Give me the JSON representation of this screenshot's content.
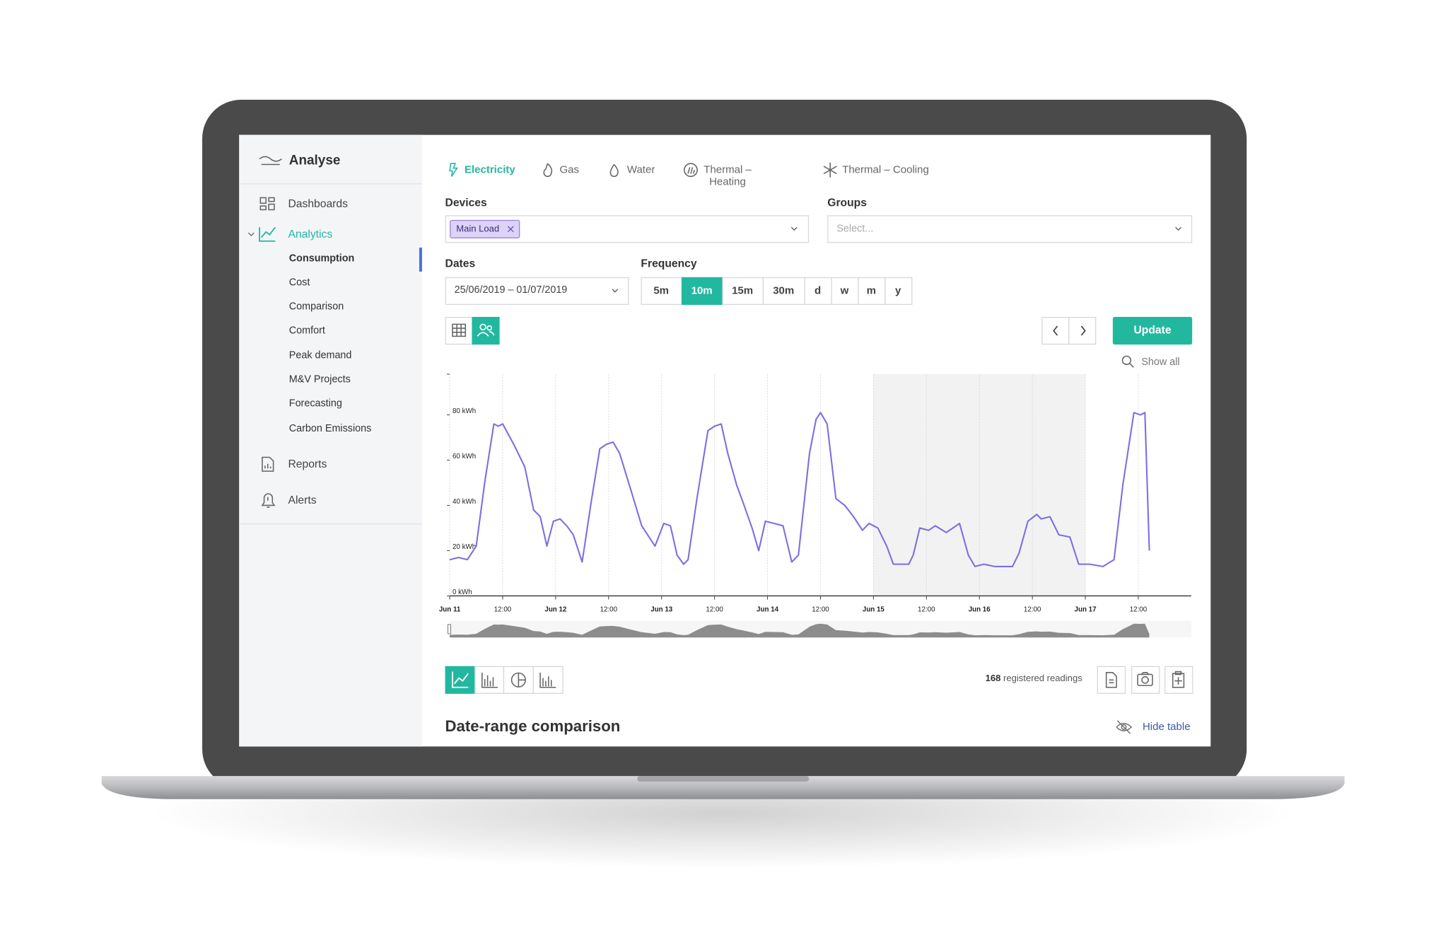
{
  "app": {
    "title": "Analyse"
  },
  "sidebar": {
    "items": [
      "Dashboards",
      "Analytics",
      "Reports",
      "Alerts"
    ],
    "analytics_sub": [
      "Consumption",
      "Cost",
      "Comparison",
      "Comfort",
      "Peak demand",
      "M&V Projects",
      "Forecasting",
      "Carbon Emissions"
    ]
  },
  "tabs": [
    "Electricity",
    "Gas",
    "Water",
    [
      "Thermal –",
      "Heating"
    ],
    "Thermal – Cooling"
  ],
  "filters": {
    "devices_label": "Devices",
    "device_tag": "Main Load",
    "groups_label": "Groups",
    "groups_placeholder": "Select...",
    "dates_label": "Dates",
    "date_range": "25/06/2019 – 01/07/2019",
    "frequency_label": "Frequency",
    "frequency_options": [
      "5m",
      "10m",
      "15m",
      "30m",
      "d",
      "w",
      "m",
      "y"
    ],
    "frequency_selected": "10m"
  },
  "update_button": "Update",
  "show_all": "Show all",
  "readings": {
    "count": 168,
    "text": "registered readings"
  },
  "section_title": "Date-range comparison",
  "hide_table": "Hide table",
  "chart_data": {
    "type": "line",
    "color": "#7b6fe3",
    "x": [
      0,
      2,
      4,
      6,
      8,
      10,
      11,
      12,
      14.5,
      17,
      19,
      20.5,
      22,
      23.5,
      25,
      26.5,
      28,
      30,
      32,
      34,
      35.5,
      37,
      38.5,
      41,
      43.5,
      46.5,
      48.5,
      50,
      51.5,
      53,
      54,
      56,
      58.5,
      60,
      61.5,
      63,
      65,
      66.5,
      68.5,
      70,
      71.5,
      73.5,
      75.5,
      77.5,
      79,
      81.5,
      83,
      84,
      85.5,
      87.5,
      89.5,
      91.5,
      93.5,
      95,
      97,
      99,
      100.5,
      104,
      105,
      106.5,
      108.5,
      110,
      112.5,
      115.5,
      117.5,
      119,
      121,
      123.5,
      127.5,
      129,
      131,
      133,
      134,
      136,
      138,
      140.5,
      142.5,
      145,
      148,
      150.5,
      152.5,
      155,
      156.5,
      157.5,
      158.5
    ],
    "values": [
      16,
      17,
      16,
      22,
      51,
      76,
      75,
      76,
      67,
      57,
      38,
      35,
      22,
      33,
      34,
      31,
      27,
      15,
      41,
      65,
      67,
      68,
      63,
      47,
      31,
      22,
      32,
      31,
      18,
      14,
      16,
      43,
      73,
      75,
      76,
      63,
      49,
      41,
      30,
      20,
      33,
      32,
      31,
      15,
      18,
      63,
      78,
      81,
      76,
      43,
      40,
      35,
      29,
      32,
      30,
      22,
      14,
      14,
      18,
      30,
      29,
      31,
      28,
      32,
      18,
      13,
      14,
      13,
      13,
      19,
      33,
      36,
      34,
      35,
      27,
      26,
      14,
      14,
      13,
      16,
      49,
      81,
      80,
      81,
      20
    ],
    "xlim": [
      0,
      168
    ],
    "ylim": [
      0,
      98
    ],
    "xticks": [
      {
        "value": 0,
        "label": "Jun 11"
      },
      {
        "value": 12,
        "label": "12:00"
      },
      {
        "value": 24,
        "label": "Jun 12"
      },
      {
        "value": 36,
        "label": "12:00"
      },
      {
        "value": 48,
        "label": "Jun 13"
      },
      {
        "value": 60,
        "label": "12:00"
      },
      {
        "value": 72,
        "label": "Jun 14"
      },
      {
        "value": 84,
        "label": "12:00"
      },
      {
        "value": 96,
        "label": "Jun 15"
      },
      {
        "value": 108,
        "label": "12:00"
      },
      {
        "value": 120,
        "label": "Jun 16"
      },
      {
        "value": 132,
        "label": "12:00"
      },
      {
        "value": 144,
        "label": "Jun 17"
      },
      {
        "value": 156,
        "label": "12:00"
      }
    ],
    "yticks": [
      {
        "value": 0,
        "label": "0 kWh"
      },
      {
        "value": 20,
        "label": "20 kWh"
      },
      {
        "value": 40,
        "label": "40 kWh"
      },
      {
        "value": 60,
        "label": "60 kWh"
      },
      {
        "value": 80,
        "label": "80 kWh"
      }
    ],
    "shaded_xrange": [
      96,
      144
    ],
    "grid": true
  }
}
